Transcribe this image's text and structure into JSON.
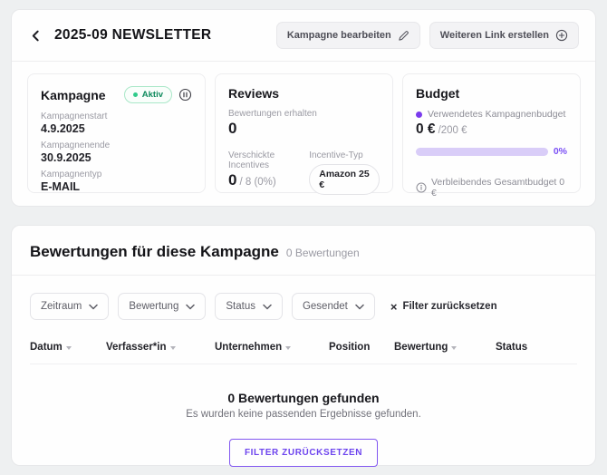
{
  "header": {
    "title": "2025-09 NEWSLETTER",
    "edit_button": "Kampagne bearbeiten",
    "create_link_button": "Weiteren Link erstellen"
  },
  "campaign_card": {
    "title": "Kampagne",
    "status_badge": "Aktiv",
    "fields": [
      {
        "label": "Kampagnenstart",
        "value": "4.9.2025"
      },
      {
        "label": "Kampagnenende",
        "value": "30.9.2025"
      },
      {
        "label": "Kampagnentyp",
        "value": "E-MAIL"
      }
    ]
  },
  "reviews_card": {
    "title": "Reviews",
    "received_label": "Bewertungen erhalten",
    "received_value": "0",
    "incentives_label": "Verschickte Incentives",
    "incentives_value": "0",
    "incentives_total": "/ 8 (0%)",
    "incentive_type_label": "Incentive-Typ",
    "incentive_type_value": "Amazon 25 €"
  },
  "budget_card": {
    "title": "Budget",
    "used_label": "Verwendetes Kampagnenbudget",
    "used_value": "0 €",
    "used_total": "/200 €",
    "progress_percent_label": "0%",
    "progress_value": 0,
    "remaining_label": "Verbleibendes Gesamtbudget 0 €"
  },
  "reviews_panel": {
    "title": "Bewertungen für diese Kampagne",
    "count": "0 Bewertungen",
    "filters": [
      {
        "label": "Zeitraum"
      },
      {
        "label": "Bewertung"
      },
      {
        "label": "Status"
      },
      {
        "label": "Gesendet"
      }
    ],
    "reset_filters_label": "Filter zurücksetzen",
    "columns": [
      {
        "label": "Datum",
        "sortable": true
      },
      {
        "label": "Verfasser*in",
        "sortable": true
      },
      {
        "label": "Unternehmen",
        "sortable": true
      },
      {
        "label": "Position",
        "sortable": false
      },
      {
        "label": "Bewertung",
        "sortable": true
      },
      {
        "label": "Status",
        "sortable": false
      }
    ],
    "empty": {
      "title": "0 Bewertungen gefunden",
      "subtitle": "Es wurden keine passenden Ergebnisse gefunden.",
      "button": "FILTER ZURÜCKSETZEN"
    }
  },
  "colors": {
    "accent_purple": "#7a4ff5",
    "progress_track": "#d9cdf8",
    "status_green_text": "#0e8a5d",
    "status_green_dot": "#2fcb8a"
  }
}
